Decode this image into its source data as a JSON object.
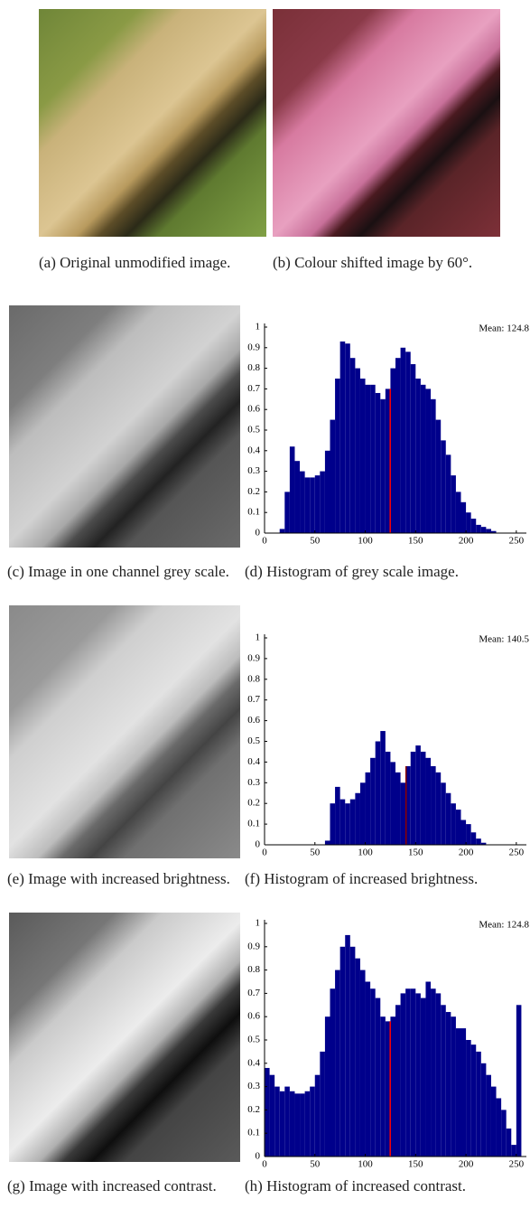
{
  "captions": {
    "a": "(a) Original unmodified image.",
    "b": "(b) Colour shifted image by 60°.",
    "c": "(c) Image in one channel grey scale.",
    "d": "(d) Histogram of grey scale image.",
    "e": "(e) Image with increased brightness.",
    "f": "(f) Histogram of increased brightness.",
    "g": "(g) Image with increased contrast.",
    "h": "(h) Histogram of increased contrast."
  },
  "chart_data": [
    {
      "type": "histogram",
      "color": "#00008b",
      "mean": 124.8,
      "mean_label": "Mean: 124.8",
      "mean_color": "#ff0000",
      "bins": [
        0,
        5,
        10,
        15,
        20,
        25,
        30,
        35,
        40,
        45,
        50,
        55,
        60,
        65,
        70,
        75,
        80,
        85,
        90,
        95,
        100,
        105,
        110,
        115,
        120,
        125,
        130,
        135,
        140,
        145,
        150,
        155,
        160,
        165,
        170,
        175,
        180,
        185,
        190,
        195,
        200,
        205,
        210,
        215,
        220,
        225,
        230,
        235,
        240,
        245,
        250,
        255
      ],
      "values": [
        0,
        0,
        0,
        0.02,
        0.2,
        0.42,
        0.35,
        0.3,
        0.27,
        0.27,
        0.28,
        0.3,
        0.4,
        0.55,
        0.75,
        0.93,
        0.92,
        0.85,
        0.8,
        0.75,
        0.72,
        0.72,
        0.68,
        0.65,
        0.7,
        0.8,
        0.85,
        0.9,
        0.88,
        0.82,
        0.75,
        0.72,
        0.7,
        0.65,
        0.55,
        0.45,
        0.38,
        0.28,
        0.2,
        0.15,
        0.1,
        0.07,
        0.04,
        0.03,
        0.02,
        0.01,
        0,
        0,
        0,
        0,
        0
      ],
      "xlim": [
        0,
        260
      ],
      "ylim": [
        0,
        1
      ],
      "xticks": [
        0,
        50,
        100,
        150,
        200,
        250
      ],
      "yticks": [
        0,
        0.1,
        0.2,
        0.3,
        0.4,
        0.5,
        0.6,
        0.7,
        0.8,
        0.9,
        1
      ]
    },
    {
      "type": "histogram",
      "color": "#00008b",
      "mean": 140.5,
      "mean_label": "Mean: 140.5",
      "mean_color": "#8b0000",
      "bins": [
        0,
        5,
        10,
        15,
        20,
        25,
        30,
        35,
        40,
        45,
        50,
        55,
        60,
        65,
        70,
        75,
        80,
        85,
        90,
        95,
        100,
        105,
        110,
        115,
        120,
        125,
        130,
        135,
        140,
        145,
        150,
        155,
        160,
        165,
        170,
        175,
        180,
        185,
        190,
        195,
        200,
        205,
        210,
        215,
        220,
        225,
        230,
        235,
        240,
        245,
        250,
        255
      ],
      "values": [
        0,
        0,
        0,
        0,
        0,
        0,
        0,
        0,
        0,
        0,
        0,
        0,
        0.02,
        0.2,
        0.28,
        0.22,
        0.2,
        0.22,
        0.25,
        0.3,
        0.35,
        0.42,
        0.5,
        0.55,
        0.45,
        0.4,
        0.35,
        0.3,
        0.38,
        0.45,
        0.48,
        0.45,
        0.42,
        0.38,
        0.35,
        0.3,
        0.25,
        0.2,
        0.17,
        0.12,
        0.1,
        0.06,
        0.03,
        0.01,
        0,
        0,
        0,
        0,
        0,
        0,
        0
      ],
      "xlim": [
        0,
        260
      ],
      "ylim": [
        0,
        1
      ],
      "xticks": [
        0,
        50,
        100,
        150,
        200,
        250
      ],
      "yticks": [
        0,
        0.1,
        0.2,
        0.3,
        0.4,
        0.5,
        0.6,
        0.7,
        0.8,
        0.9,
        1
      ]
    },
    {
      "type": "histogram",
      "color": "#00008b",
      "mean": 124.8,
      "mean_label": "Mean: 124.8",
      "mean_color": "#ff0000",
      "bins": [
        0,
        5,
        10,
        15,
        20,
        25,
        30,
        35,
        40,
        45,
        50,
        55,
        60,
        65,
        70,
        75,
        80,
        85,
        90,
        95,
        100,
        105,
        110,
        115,
        120,
        125,
        130,
        135,
        140,
        145,
        150,
        155,
        160,
        165,
        170,
        175,
        180,
        185,
        190,
        195,
        200,
        205,
        210,
        215,
        220,
        225,
        230,
        235,
        240,
        245,
        250,
        255
      ],
      "values": [
        0.38,
        0.35,
        0.3,
        0.28,
        0.3,
        0.28,
        0.27,
        0.27,
        0.28,
        0.3,
        0.35,
        0.45,
        0.6,
        0.72,
        0.8,
        0.9,
        0.95,
        0.9,
        0.85,
        0.8,
        0.75,
        0.72,
        0.68,
        0.6,
        0.58,
        0.6,
        0.65,
        0.7,
        0.72,
        0.72,
        0.7,
        0.68,
        0.75,
        0.72,
        0.7,
        0.65,
        0.62,
        0.6,
        0.55,
        0.55,
        0.5,
        0.48,
        0.45,
        0.4,
        0.35,
        0.3,
        0.25,
        0.2,
        0.12,
        0.05,
        0.65
      ],
      "xlim": [
        0,
        260
      ],
      "ylim": [
        0,
        1
      ],
      "xticks": [
        0,
        50,
        100,
        150,
        200,
        250
      ],
      "yticks": [
        0,
        0.1,
        0.2,
        0.3,
        0.4,
        0.5,
        0.6,
        0.7,
        0.8,
        0.9,
        1
      ]
    }
  ]
}
